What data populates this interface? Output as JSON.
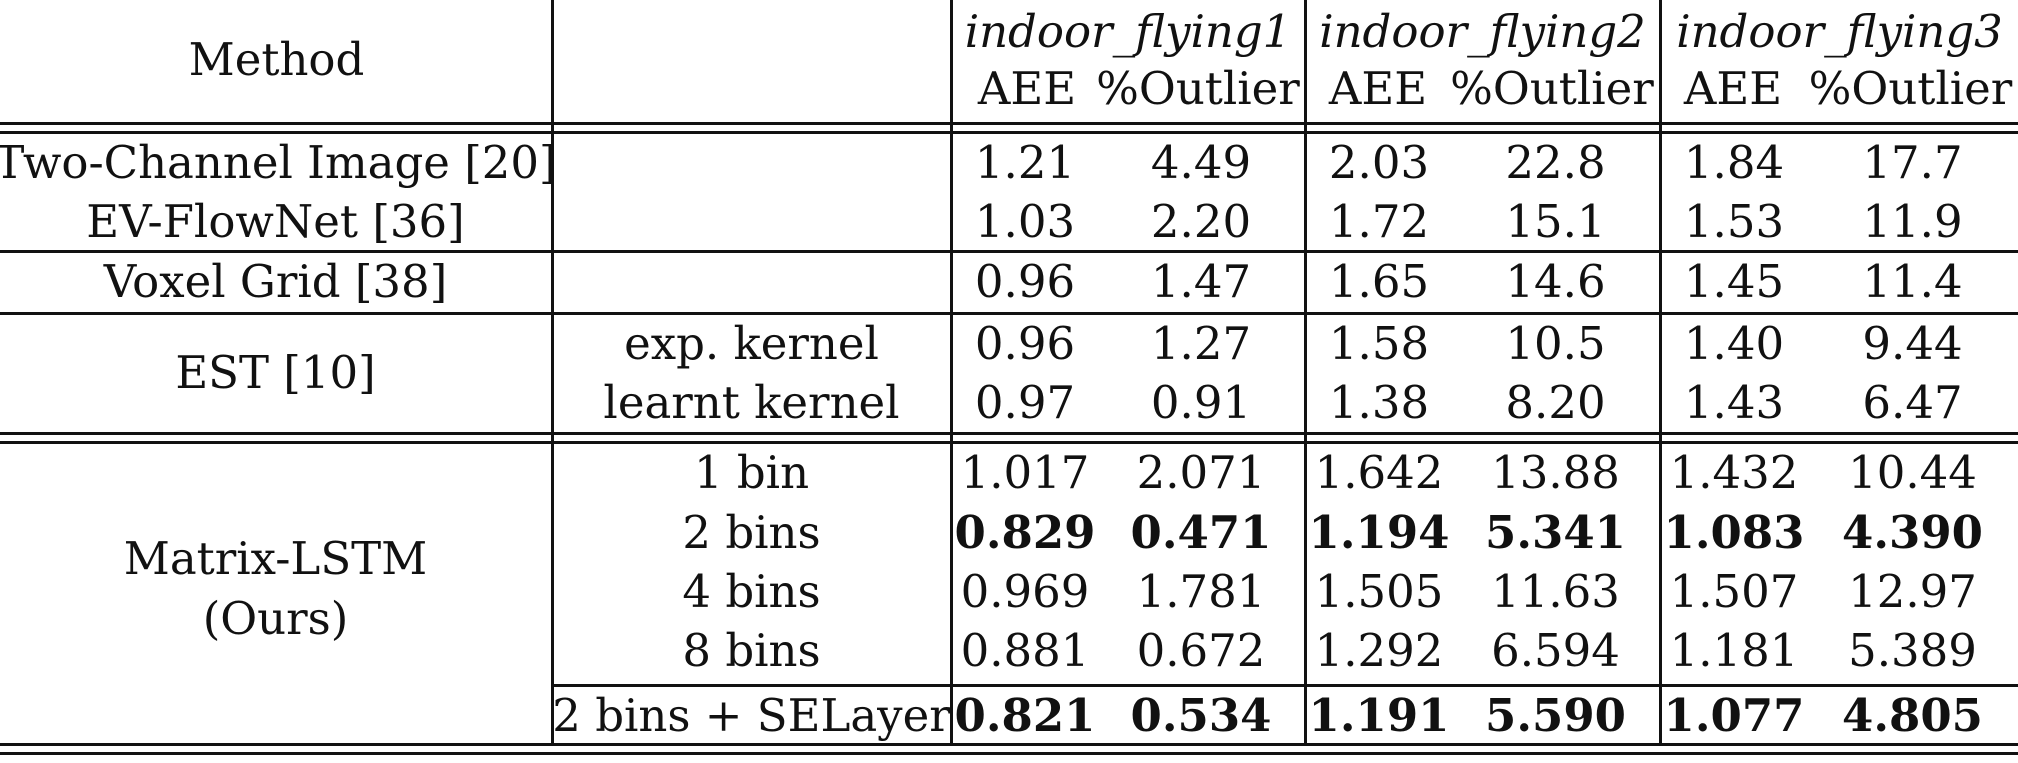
{
  "table": {
    "header": {
      "method": "Method",
      "groups": [
        "indoor_flying1",
        "indoor_flying2",
        "indoor_flying3"
      ],
      "metrics": [
        "AEE",
        "%Outlier",
        "AEE",
        "%Outlier",
        "AEE",
        "%Outlier"
      ]
    },
    "rows": [
      {
        "method": "Two-Channel Image [20]",
        "variant": "",
        "values": [
          "1.21",
          "4.49",
          "2.03",
          "22.8",
          "1.84",
          "17.7"
        ],
        "bold": [
          false,
          false,
          false,
          false,
          false,
          false
        ]
      },
      {
        "method": "EV-FlowNet [36]",
        "variant": "",
        "values": [
          "1.03",
          "2.20",
          "1.72",
          "15.1",
          "1.53",
          "11.9"
        ],
        "bold": [
          false,
          false,
          false,
          false,
          false,
          false
        ]
      },
      {
        "method": "Voxel Grid [38]",
        "variant": "",
        "values": [
          "0.96",
          "1.47",
          "1.65",
          "14.6",
          "1.45",
          "11.4"
        ],
        "bold": [
          false,
          false,
          false,
          false,
          false,
          false
        ]
      },
      {
        "method": "EST [10]",
        "variant": "exp. kernel",
        "values": [
          "0.96",
          "1.27",
          "1.58",
          "10.5",
          "1.40",
          "9.44"
        ],
        "bold": [
          false,
          false,
          false,
          false,
          false,
          false
        ]
      },
      {
        "method": "",
        "variant": "learnt kernel",
        "values": [
          "0.97",
          "0.91",
          "1.38",
          "8.20",
          "1.43",
          "6.47"
        ],
        "bold": [
          false,
          false,
          false,
          false,
          false,
          false
        ]
      },
      {
        "method": "Matrix-LSTM",
        "variant": "1 bin",
        "values": [
          "1.017",
          "2.071",
          "1.642",
          "13.88",
          "1.432",
          "10.44"
        ],
        "bold": [
          false,
          false,
          false,
          false,
          false,
          false
        ]
      },
      {
        "method": "(Ours)",
        "variant": "2 bins",
        "values": [
          "0.829",
          "0.471",
          "1.194",
          "5.341",
          "1.083",
          "4.390"
        ],
        "bold": [
          true,
          true,
          true,
          true,
          true,
          true
        ]
      },
      {
        "method": "",
        "variant": "4 bins",
        "values": [
          "0.969",
          "1.781",
          "1.505",
          "11.63",
          "1.507",
          "12.97"
        ],
        "bold": [
          false,
          false,
          false,
          false,
          false,
          false
        ]
      },
      {
        "method": "",
        "variant": "8 bins",
        "values": [
          "0.881",
          "0.672",
          "1.292",
          "6.594",
          "1.181",
          "5.389"
        ],
        "bold": [
          false,
          false,
          false,
          false,
          false,
          false
        ]
      },
      {
        "method": "",
        "variant": "2 bins + SELayer",
        "values": [
          "0.821",
          "0.534",
          "1.191",
          "5.590",
          "1.077",
          "4.805"
        ],
        "bold": [
          true,
          true,
          true,
          true,
          true,
          true
        ]
      }
    ]
  }
}
